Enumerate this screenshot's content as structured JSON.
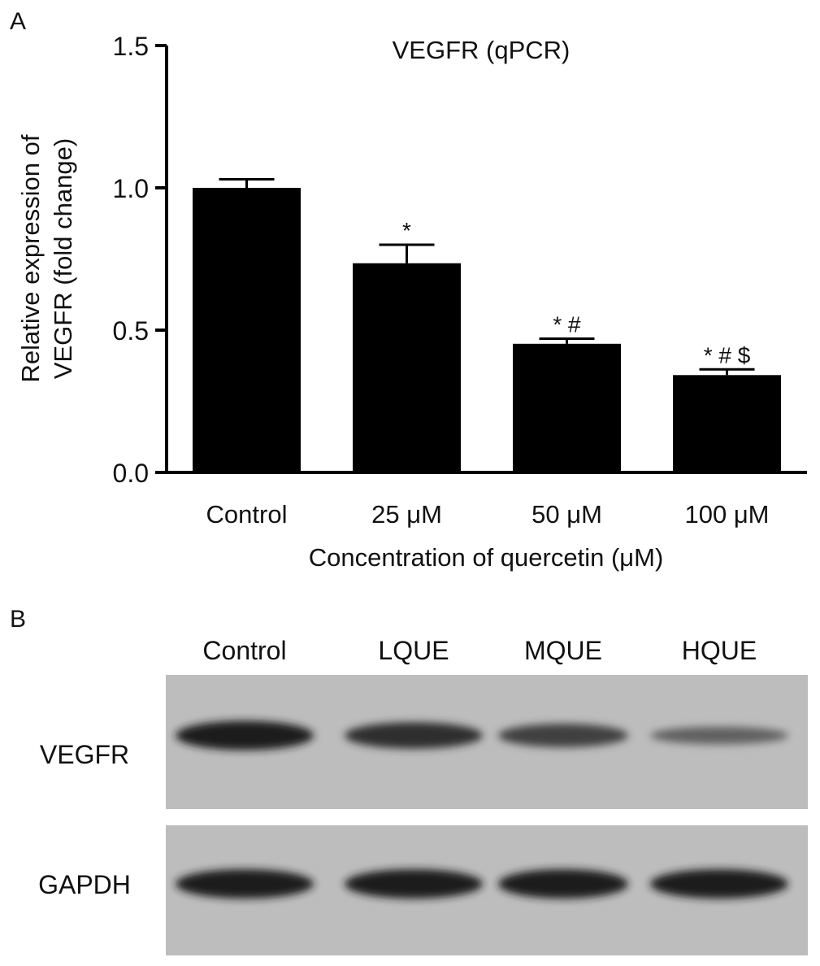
{
  "panels": {
    "a": "A",
    "b": "B"
  },
  "chart_data": {
    "type": "bar",
    "title": "VEGFR (qPCR)",
    "xlabel": "Concentration of quercetin (μM)",
    "ylabel_lines": [
      "Relative expression of",
      "VEGFR (fold change)"
    ],
    "categories": [
      "Control",
      "25 μM",
      "50 μM",
      "100 μM"
    ],
    "values": [
      1.0,
      0.735,
      0.452,
      0.342
    ],
    "errors": [
      0.03,
      0.065,
      0.018,
      0.02
    ],
    "annotations": [
      "",
      "*",
      "* #",
      "* # $"
    ],
    "ylim": [
      0,
      1.5
    ],
    "yticks": [
      "0.0",
      "0.5",
      "1.0",
      "1.5"
    ],
    "bar_color": "#000000",
    "grid": false
  },
  "blot": {
    "lanes": [
      "Control",
      "LQUE",
      "MQUE",
      "HQUE"
    ],
    "rows": [
      {
        "label": "VEGFR",
        "band_intensity": [
          1.0,
          0.85,
          0.7,
          0.4
        ]
      },
      {
        "label": "GAPDH",
        "band_intensity": [
          1.0,
          1.0,
          1.0,
          1.0
        ]
      }
    ],
    "background_color": "#bdbdbd"
  }
}
